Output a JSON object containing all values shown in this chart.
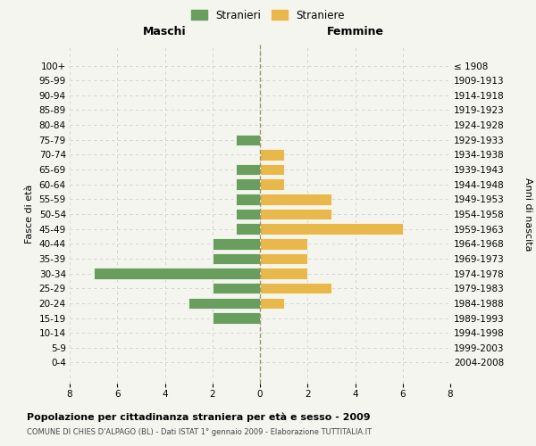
{
  "age_groups": [
    "100+",
    "95-99",
    "90-94",
    "85-89",
    "80-84",
    "75-79",
    "70-74",
    "65-69",
    "60-64",
    "55-59",
    "50-54",
    "45-49",
    "40-44",
    "35-39",
    "30-34",
    "25-29",
    "20-24",
    "15-19",
    "10-14",
    "5-9",
    "0-4"
  ],
  "birth_years": [
    "≤ 1908",
    "1909-1913",
    "1914-1918",
    "1919-1923",
    "1924-1928",
    "1929-1933",
    "1934-1938",
    "1939-1943",
    "1944-1948",
    "1949-1953",
    "1954-1958",
    "1959-1963",
    "1964-1968",
    "1969-1973",
    "1974-1978",
    "1979-1983",
    "1984-1988",
    "1989-1993",
    "1994-1998",
    "1999-2003",
    "2004-2008"
  ],
  "males": [
    0,
    0,
    0,
    0,
    0,
    1,
    0,
    1,
    1,
    1,
    1,
    1,
    2,
    2,
    7,
    2,
    3,
    2,
    0,
    0,
    0
  ],
  "females": [
    0,
    0,
    0,
    0,
    0,
    0,
    1,
    1,
    1,
    3,
    3,
    6,
    2,
    2,
    2,
    3,
    1,
    0,
    0,
    0,
    0
  ],
  "male_color": "#6a9e5e",
  "female_color": "#e8b84b",
  "background_color": "#f5f5f0",
  "grid_color": "#d0d0c8",
  "dashed_line_color": "#999966",
  "title": "Popolazione per cittadinanza straniera per età e sesso - 2009",
  "subtitle": "COMUNE DI CHIES D'ALPAGO (BL) - Dati ISTAT 1° gennaio 2009 - Elaborazione TUTTITALIA.IT",
  "xlabel_left": "Maschi",
  "xlabel_right": "Femmine",
  "ylabel_left": "Fasce di età",
  "ylabel_right": "Anni di nascita",
  "legend_male": "Stranieri",
  "legend_female": "Straniere",
  "xlim": 8
}
